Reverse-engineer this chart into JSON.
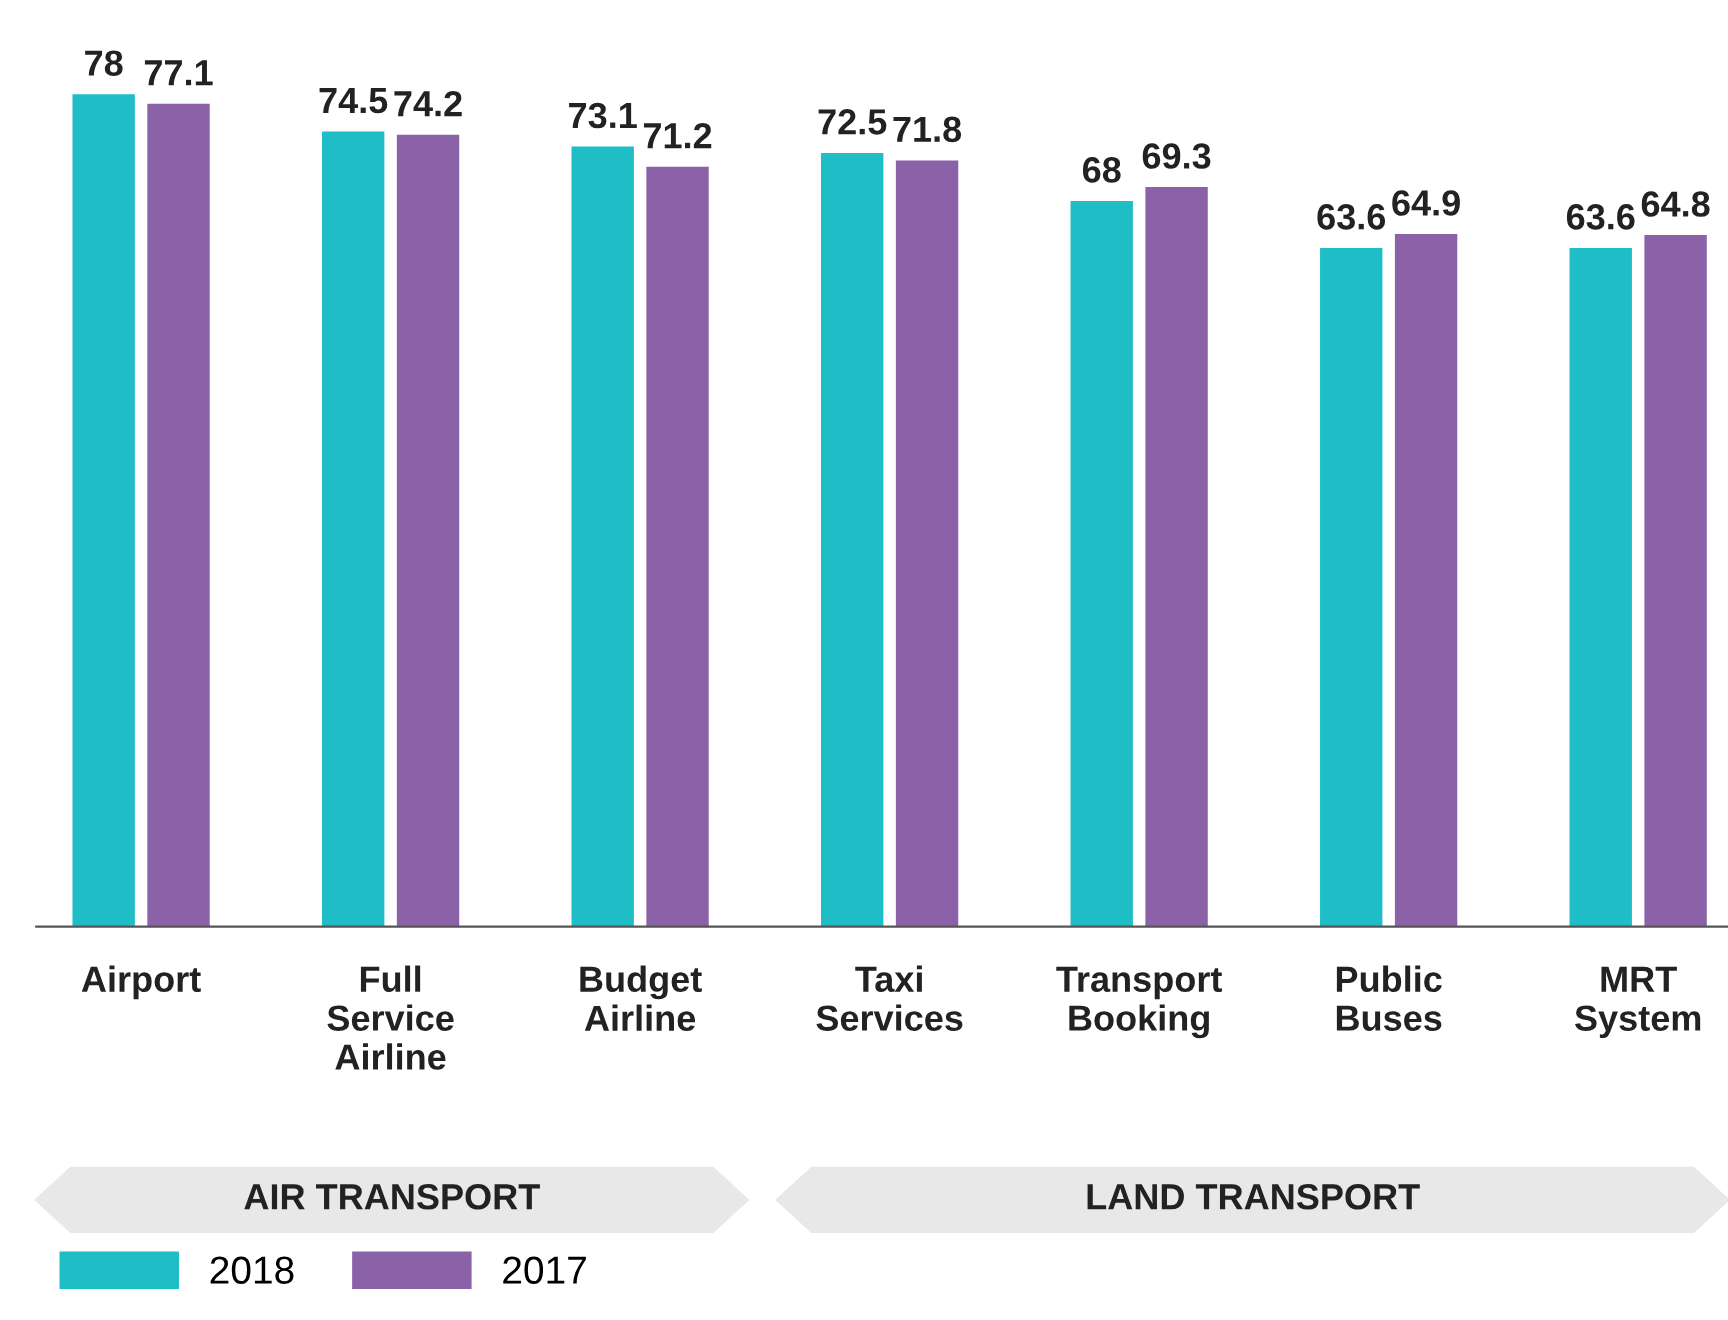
{
  "chart_data": {
    "type": "bar",
    "categories": [
      "Airport",
      "Full Service Airline",
      "Budget Airline",
      "Taxi Services",
      "Transport Booking",
      "Public Buses",
      "MRT System"
    ],
    "series": [
      {
        "name": "2018",
        "color": "#1fbdc6",
        "values": [
          78,
          74.5,
          73.1,
          72.5,
          68,
          63.6,
          63.6
        ]
      },
      {
        "name": "2017",
        "color": "#8b62a8",
        "values": [
          77.1,
          74.2,
          71.2,
          71.8,
          69.3,
          64.9,
          64.8
        ]
      }
    ],
    "annotations": [
      "AIR TRANSPORT",
      "LAND TRANSPORT"
    ],
    "data_labels": true,
    "grid": false,
    "legend": "bottom left",
    "tick_labels": "x"
  }
}
